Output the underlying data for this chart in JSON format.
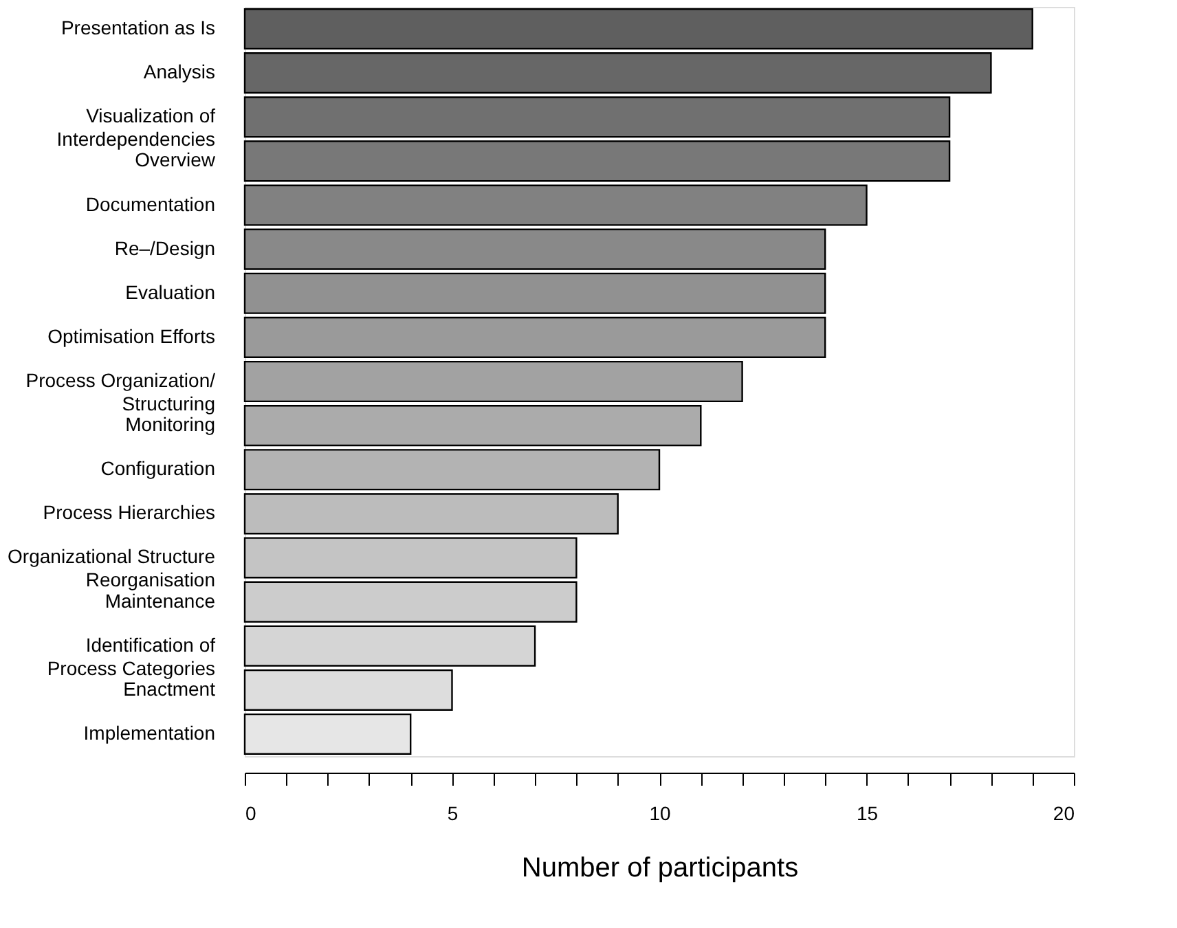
{
  "chart_data": {
    "type": "bar",
    "orientation": "horizontal",
    "xlabel": "Number of participants",
    "categories": [
      "Presentation as Is",
      "Analysis",
      "Visualization of \nInterdependencies",
      "Overview",
      "Documentation",
      "Re–/Design",
      "Evaluation",
      "Optimisation Efforts",
      "Process Organization/ \nStructuring",
      "Monitoring",
      "Configuration",
      "Process Hierarchies",
      "Organizational Structure \nReorganisation",
      "Maintenance",
      "Identification of \nProcess Categories",
      "Enactment",
      "Implementation"
    ],
    "values": [
      19,
      18,
      17,
      17,
      15,
      14,
      14,
      14,
      12,
      11,
      10,
      9,
      8,
      8,
      7,
      5,
      4
    ],
    "colors": [
      "#5f5f5f",
      "#676767",
      "#707070",
      "#787878",
      "#818181",
      "#898989",
      "#919191",
      "#9a9a9a",
      "#a2a2a2",
      "#ababab",
      "#b3b3b3",
      "#bcbcbc",
      "#c4c4c4",
      "#cccccc",
      "#d5d5d5",
      "#dddddd",
      "#e6e6e6"
    ],
    "xlim": [
      0,
      20
    ],
    "xticks": [
      0,
      {
        "value": 1,
        "label": null
      },
      {
        "value": 2,
        "label": null
      },
      {
        "value": 3,
        "label": null
      },
      {
        "value": 4,
        "label": null
      },
      5,
      {
        "value": 6,
        "label": null
      },
      {
        "value": 7,
        "label": null
      },
      {
        "value": 8,
        "label": null
      },
      {
        "value": 9,
        "label": null
      },
      10,
      {
        "value": 11,
        "label": null
      },
      {
        "value": 12,
        "label": null
      },
      {
        "value": 13,
        "label": null
      },
      {
        "value": 14,
        "label": null
      },
      15,
      {
        "value": 16,
        "label": null
      },
      {
        "value": 17,
        "label": null
      },
      {
        "value": 18,
        "label": null
      },
      {
        "value": 19,
        "label": null
      },
      20
    ],
    "grid": false
  }
}
